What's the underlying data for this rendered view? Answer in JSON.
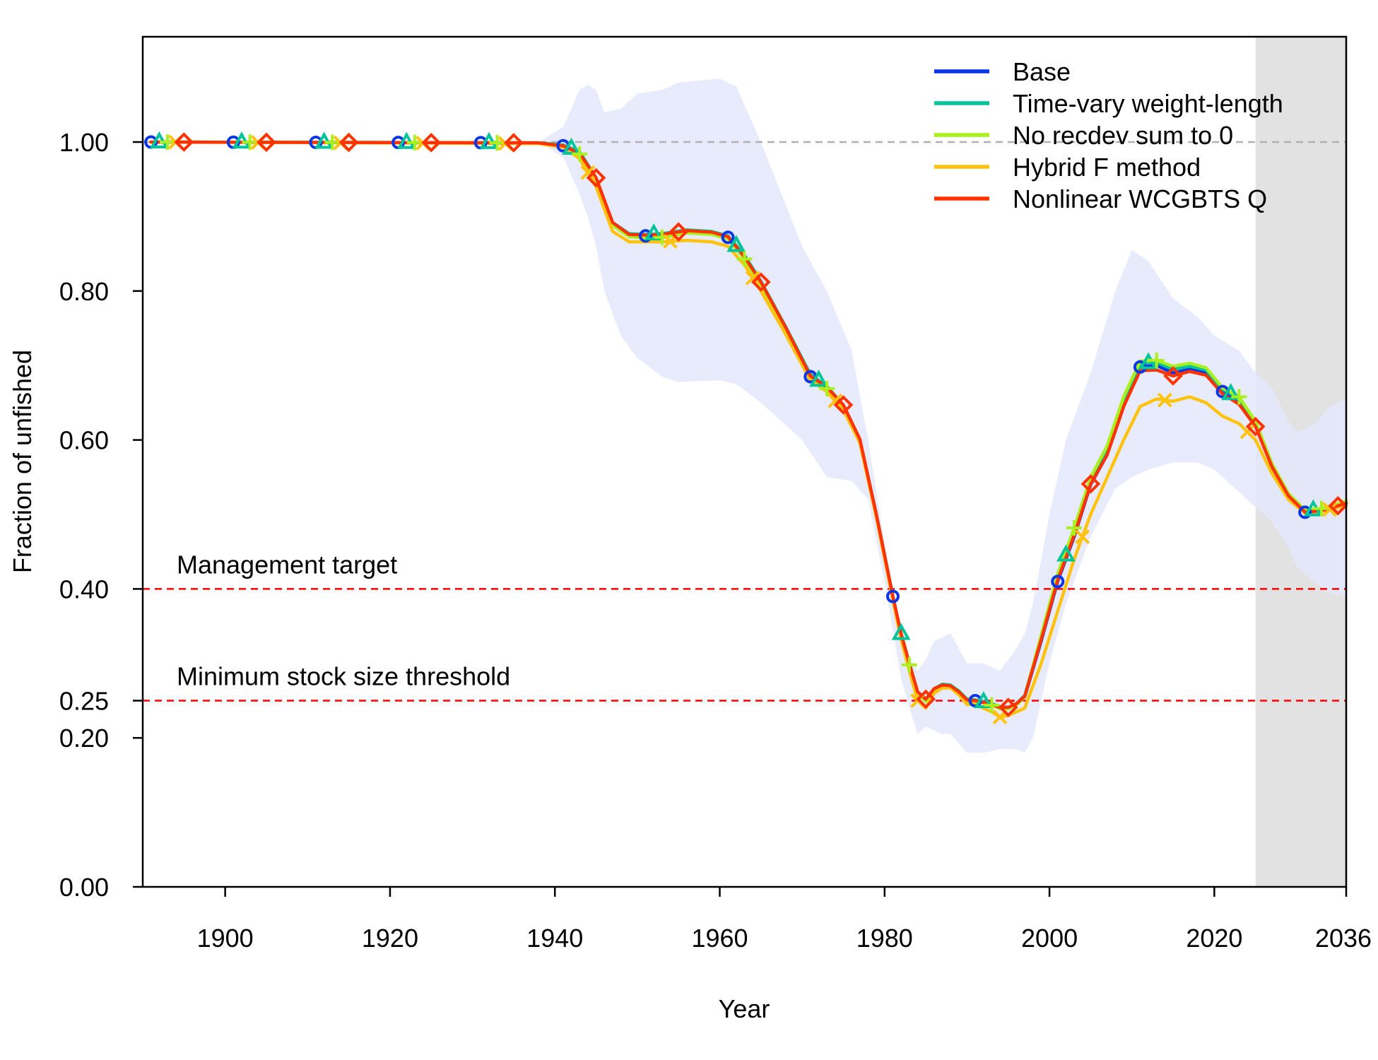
{
  "chart_data": {
    "type": "line",
    "xlabel": "Year",
    "ylabel": "Fraction of unfished",
    "xlim": [
      1890,
      2036
    ],
    "ylim": [
      0,
      1.12
    ],
    "x_ticks": [
      1900,
      1920,
      1940,
      1960,
      1980,
      2000,
      2020,
      2036
    ],
    "x_tick_labels": [
      "1900",
      "1920",
      "1940",
      "1960",
      "1980",
      "2000",
      "2020",
      "2036"
    ],
    "y_ticks": [
      0,
      0.2,
      0.25,
      0.4,
      0.6,
      0.8,
      1.0
    ],
    "y_tick_labels": [
      "0.00",
      "0.20",
      "0.25",
      "0.40",
      "0.60",
      "0.80",
      "1.00"
    ],
    "legend_position": "top-right",
    "forecast_region": {
      "x_start": 2025,
      "x_end": 2036,
      "color": "#e2e2e2"
    },
    "reference_lines": [
      {
        "y": 1.0,
        "label": "",
        "color": "#b0b0b0"
      },
      {
        "y": 0.4,
        "label": "Management target",
        "color": "#ff0000"
      },
      {
        "y": 0.25,
        "label": "Minimum stock size threshold",
        "color": "#ff0000"
      }
    ],
    "uncertainty_band": {
      "series": "Base",
      "color": "#e4e8fb",
      "x": [
        1938,
        1941,
        1943,
        1944,
        1945,
        1946,
        1948,
        1950,
        1953,
        1955,
        1960,
        1962,
        1965,
        1970,
        1973,
        1976,
        1978,
        1980,
        1982,
        1983,
        1984,
        1985,
        1986,
        1987,
        1988,
        1990,
        1992,
        1994,
        1996,
        1997,
        1998,
        2000,
        2002,
        2005,
        2008,
        2010,
        2012,
        2015,
        2018,
        2020,
        2023,
        2025,
        2027,
        2029,
        2030,
        2032,
        2034,
        2036
      ],
      "upper": [
        1.0,
        1.02,
        1.07,
        1.077,
        1.07,
        1.04,
        1.045,
        1.065,
        1.07,
        1.08,
        1.085,
        1.075,
        1.0,
        0.86,
        0.8,
        0.72,
        0.6,
        0.46,
        0.34,
        0.31,
        0.29,
        0.305,
        0.33,
        0.335,
        0.34,
        0.3,
        0.3,
        0.29,
        0.32,
        0.34,
        0.38,
        0.5,
        0.6,
        0.69,
        0.8,
        0.855,
        0.84,
        0.79,
        0.765,
        0.74,
        0.72,
        0.69,
        0.67,
        0.625,
        0.61,
        0.62,
        0.645,
        0.655
      ],
      "lower": [
        1.0,
        0.98,
        0.93,
        0.9,
        0.86,
        0.8,
        0.74,
        0.71,
        0.685,
        0.678,
        0.68,
        0.675,
        0.65,
        0.6,
        0.55,
        0.545,
        0.52,
        0.41,
        0.28,
        0.24,
        0.205,
        0.215,
        0.21,
        0.205,
        0.205,
        0.18,
        0.18,
        0.185,
        0.185,
        0.18,
        0.2,
        0.3,
        0.38,
        0.47,
        0.535,
        0.55,
        0.56,
        0.57,
        0.57,
        0.56,
        0.53,
        0.51,
        0.49,
        0.455,
        0.43,
        0.41,
        0.395,
        0.39
      ]
    },
    "series": [
      {
        "name": "Base",
        "color": "#0a36e6",
        "marker": "circle",
        "marker_x": [
          1891,
          1901,
          1911,
          1921,
          1931,
          1941,
          1951,
          1961,
          1971,
          1981,
          1991,
          2001,
          2011,
          2021,
          2031
        ],
        "x": [
          1891,
          1938,
          1941,
          1943,
          1945,
          1947,
          1949,
          1951,
          1953,
          1956,
          1959,
          1961,
          1963,
          1965,
          1968,
          1971,
          1973,
          1975,
          1977,
          1979,
          1981,
          1982,
          1983,
          1984,
          1985,
          1986,
          1987,
          1988,
          1989,
          1990,
          1991,
          1993,
          1994,
          1995,
          1996,
          1997,
          1999,
          2001,
          2003,
          2005,
          2007,
          2009,
          2011,
          2013,
          2015,
          2017,
          2019,
          2021,
          2023,
          2025,
          2027,
          2029,
          2031,
          2033,
          2036
        ],
        "y": [
          1.0,
          0.999,
          0.995,
          0.985,
          0.95,
          0.89,
          0.875,
          0.874,
          0.875,
          0.88,
          0.878,
          0.872,
          0.845,
          0.81,
          0.75,
          0.685,
          0.67,
          0.645,
          0.6,
          0.5,
          0.39,
          0.34,
          0.3,
          0.26,
          0.25,
          0.265,
          0.27,
          0.27,
          0.262,
          0.25,
          0.25,
          0.245,
          0.24,
          0.24,
          0.245,
          0.255,
          0.33,
          0.41,
          0.47,
          0.54,
          0.58,
          0.645,
          0.698,
          0.7,
          0.69,
          0.695,
          0.69,
          0.665,
          0.652,
          0.62,
          0.565,
          0.525,
          0.503,
          0.505,
          0.515
        ]
      },
      {
        "name": "Time-vary weight-length",
        "color": "#00c49a",
        "marker": "triangle",
        "marker_x": [
          1892,
          1902,
          1912,
          1922,
          1932,
          1942,
          1952,
          1962,
          1972,
          1982,
          1992,
          2002,
          2012,
          2022,
          2032
        ],
        "x": [
          1891,
          1938,
          1941,
          1943,
          1945,
          1947,
          1949,
          1951,
          1953,
          1956,
          1959,
          1961,
          1963,
          1965,
          1968,
          1971,
          1973,
          1975,
          1977,
          1979,
          1981,
          1982,
          1983,
          1984,
          1985,
          1986,
          1987,
          1988,
          1989,
          1990,
          1991,
          1993,
          1994,
          1995,
          1996,
          1997,
          1999,
          2001,
          2003,
          2005,
          2007,
          2009,
          2011,
          2013,
          2015,
          2017,
          2019,
          2021,
          2023,
          2025,
          2027,
          2029,
          2031,
          2033,
          2036
        ],
        "y": [
          1.0,
          0.999,
          0.996,
          0.987,
          0.952,
          0.892,
          0.877,
          0.876,
          0.877,
          0.882,
          0.88,
          0.874,
          0.848,
          0.813,
          0.752,
          0.688,
          0.672,
          0.647,
          0.6,
          0.5,
          0.39,
          0.34,
          0.3,
          0.262,
          0.252,
          0.266,
          0.272,
          0.271,
          0.263,
          0.252,
          0.251,
          0.246,
          0.242,
          0.241,
          0.246,
          0.257,
          0.335,
          0.415,
          0.476,
          0.546,
          0.586,
          0.652,
          0.703,
          0.704,
          0.695,
          0.699,
          0.694,
          0.668,
          0.656,
          0.623,
          0.567,
          0.527,
          0.505,
          0.507,
          0.517
        ]
      },
      {
        "name": "No recdev sum to 0",
        "color": "#aaf01e",
        "marker": "plus",
        "marker_x": [
          1893,
          1903,
          1913,
          1923,
          1933,
          1943,
          1953,
          1963,
          1973,
          1983,
          1993,
          2003,
          2013,
          2023,
          2033
        ],
        "x": [
          1891,
          1938,
          1941,
          1943,
          1945,
          1947,
          1949,
          1951,
          1953,
          1956,
          1959,
          1961,
          1963,
          1965,
          1968,
          1971,
          1973,
          1975,
          1977,
          1979,
          1981,
          1982,
          1983,
          1984,
          1985,
          1986,
          1987,
          1988,
          1989,
          1990,
          1991,
          1993,
          1994,
          1995,
          1996,
          1997,
          1999,
          2001,
          2003,
          2005,
          2007,
          2009,
          2011,
          2013,
          2015,
          2017,
          2019,
          2021,
          2023,
          2025,
          2027,
          2029,
          2031,
          2033,
          2036
        ],
        "y": [
          1.0,
          0.999,
          0.995,
          0.984,
          0.949,
          0.888,
          0.873,
          0.871,
          0.872,
          0.878,
          0.876,
          0.87,
          0.843,
          0.808,
          0.748,
          0.683,
          0.669,
          0.644,
          0.598,
          0.498,
          0.388,
          0.338,
          0.298,
          0.259,
          0.249,
          0.264,
          0.269,
          0.269,
          0.261,
          0.249,
          0.249,
          0.244,
          0.239,
          0.239,
          0.244,
          0.255,
          0.338,
          0.42,
          0.482,
          0.55,
          0.592,
          0.658,
          0.706,
          0.707,
          0.699,
          0.703,
          0.697,
          0.67,
          0.658,
          0.625,
          0.568,
          0.528,
          0.506,
          0.508,
          0.518
        ]
      },
      {
        "name": "Hybrid F method",
        "color": "#ffc20e",
        "marker": "cross",
        "marker_x": [
          1894,
          1904,
          1914,
          1924,
          1934,
          1944,
          1954,
          1964,
          1974,
          1984,
          1994,
          2004,
          2014,
          2024,
          2034
        ],
        "x": [
          1891,
          1938,
          1941,
          1943,
          1945,
          1947,
          1949,
          1951,
          1953,
          1956,
          1959,
          1961,
          1963,
          1965,
          1968,
          1971,
          1973,
          1975,
          1977,
          1979,
          1981,
          1982,
          1983,
          1984,
          1985,
          1986,
          1987,
          1988,
          1989,
          1990,
          1991,
          1993,
          1994,
          1995,
          1996,
          1997,
          1999,
          2001,
          2003,
          2005,
          2007,
          2009,
          2011,
          2013,
          2015,
          2017,
          2019,
          2021,
          2023,
          2025,
          2027,
          2029,
          2031,
          2033,
          2036
        ],
        "y": [
          1.0,
          0.998,
          0.993,
          0.978,
          0.94,
          0.88,
          0.866,
          0.866,
          0.866,
          0.868,
          0.866,
          0.86,
          0.835,
          0.8,
          0.742,
          0.68,
          0.665,
          0.64,
          0.596,
          0.496,
          0.385,
          0.332,
          0.29,
          0.25,
          0.24,
          0.26,
          0.267,
          0.267,
          0.258,
          0.245,
          0.245,
          0.235,
          0.228,
          0.23,
          0.235,
          0.24,
          0.3,
          0.37,
          0.44,
          0.5,
          0.55,
          0.6,
          0.645,
          0.655,
          0.652,
          0.658,
          0.65,
          0.632,
          0.622,
          0.6,
          0.555,
          0.52,
          0.502,
          0.504,
          0.512
        ]
      },
      {
        "name": "Nonlinear WCGBTS Q",
        "color": "#ff3300",
        "marker": "diamond",
        "marker_x": [
          1895,
          1905,
          1915,
          1925,
          1935,
          1945,
          1955,
          1965,
          1975,
          1985,
          1995,
          2005,
          2015,
          2025,
          2035
        ],
        "x": [
          1891,
          1938,
          1941,
          1943,
          1945,
          1947,
          1949,
          1951,
          1953,
          1956,
          1959,
          1961,
          1963,
          1965,
          1968,
          1971,
          1973,
          1975,
          1977,
          1979,
          1981,
          1982,
          1983,
          1984,
          1985,
          1986,
          1987,
          1988,
          1989,
          1990,
          1991,
          1993,
          1994,
          1995,
          1996,
          1997,
          1999,
          2001,
          2003,
          2005,
          2007,
          2009,
          2011,
          2013,
          2015,
          2017,
          2019,
          2021,
          2023,
          2025,
          2027,
          2029,
          2031,
          2033,
          2036
        ],
        "y": [
          1.0,
          0.999,
          0.995,
          0.985,
          0.952,
          0.892,
          0.876,
          0.875,
          0.876,
          0.881,
          0.879,
          0.873,
          0.846,
          0.812,
          0.751,
          0.686,
          0.671,
          0.647,
          0.601,
          0.5,
          0.39,
          0.34,
          0.3,
          0.262,
          0.252,
          0.266,
          0.271,
          0.27,
          0.262,
          0.251,
          0.25,
          0.245,
          0.241,
          0.241,
          0.246,
          0.256,
          0.332,
          0.412,
          0.472,
          0.541,
          0.58,
          0.645,
          0.693,
          0.694,
          0.686,
          0.692,
          0.687,
          0.662,
          0.648,
          0.618,
          0.564,
          0.525,
          0.503,
          0.505,
          0.515
        ]
      }
    ]
  }
}
